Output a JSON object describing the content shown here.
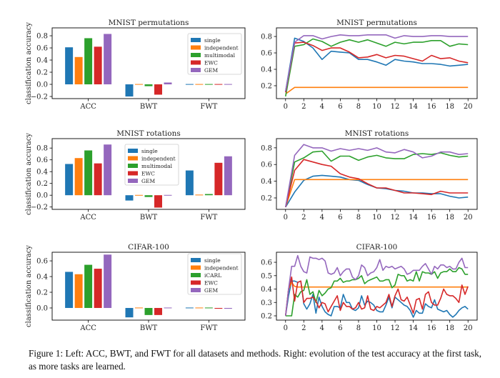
{
  "caption": "Figure 1: Left: ACC, BWT, and FWT for all datasets and methods. Right: evolution of the test accuracy at the first task, as more tasks are learned.",
  "colors": [
    "#1f77b4",
    "#ff7f0e",
    "#2ca02c",
    "#d62728",
    "#9467bd"
  ],
  "chart_data": [
    {
      "type": "bar",
      "title": "MNIST permutations",
      "ylabel": "classification accuracy",
      "categories": [
        "ACC",
        "BWT",
        "FWT"
      ],
      "ylim": [
        -0.235,
        0.93
      ],
      "yticks": [
        -0.2,
        0.0,
        0.2,
        0.4,
        0.6,
        0.8
      ],
      "legend": "top-right",
      "series": [
        {
          "name": "single",
          "values": [
            0.61,
            -0.2,
            0.005
          ]
        },
        {
          "name": "independent",
          "values": [
            0.45,
            0.005,
            0.005
          ]
        },
        {
          "name": "multimodal",
          "values": [
            0.76,
            -0.03,
            0.005
          ]
        },
        {
          "name": "EWC",
          "values": [
            0.62,
            -0.17,
            0.005
          ]
        },
        {
          "name": "GEM",
          "values": [
            0.83,
            0.03,
            0.005
          ]
        }
      ]
    },
    {
      "type": "line",
      "title": "MNIST permutations",
      "ylim": [
        0.043,
        0.905
      ],
      "xlim": [
        -1,
        21
      ],
      "yticks": [
        0.2,
        0.4,
        0.6,
        0.8
      ],
      "xticks": [
        0,
        2,
        4,
        6,
        8,
        10,
        12,
        14,
        16,
        18,
        20
      ],
      "x": [
        0,
        1,
        2,
        3,
        4,
        5,
        6,
        7,
        8,
        9,
        10,
        11,
        12,
        13,
        14,
        15,
        16,
        17,
        18,
        19,
        20
      ],
      "series": [
        {
          "values": [
            0.13,
            0.78,
            0.74,
            0.66,
            0.52,
            0.62,
            0.61,
            0.6,
            0.52,
            0.52,
            0.49,
            0.45,
            0.52,
            0.5,
            0.49,
            0.47,
            0.47,
            0.46,
            0.44,
            0.45,
            0.46
          ]
        },
        {
          "values": [
            0.1,
            0.18,
            0.18,
            0.18,
            0.18,
            0.18,
            0.18,
            0.18,
            0.18,
            0.18,
            0.18,
            0.18,
            0.18,
            0.18,
            0.18,
            0.18,
            0.18,
            0.18,
            0.18,
            0.18,
            0.18
          ]
        },
        {
          "values": [
            0.07,
            0.68,
            0.7,
            0.77,
            0.74,
            0.68,
            0.73,
            0.76,
            0.73,
            0.76,
            0.72,
            0.68,
            0.73,
            0.71,
            0.73,
            0.73,
            0.75,
            0.75,
            0.68,
            0.71,
            0.7
          ]
        },
        {
          "values": [
            0.12,
            0.72,
            0.73,
            0.69,
            0.63,
            0.66,
            0.66,
            0.61,
            0.54,
            0.55,
            0.58,
            0.54,
            0.57,
            0.56,
            0.53,
            0.5,
            0.57,
            0.53,
            0.54,
            0.5,
            0.48
          ]
        },
        {
          "values": [
            0.13,
            0.73,
            0.81,
            0.81,
            0.77,
            0.8,
            0.82,
            0.81,
            0.81,
            0.82,
            0.82,
            0.82,
            0.78,
            0.81,
            0.8,
            0.8,
            0.81,
            0.81,
            0.8,
            0.8,
            0.8
          ]
        }
      ]
    },
    {
      "type": "bar",
      "title": "MNIST rotations",
      "ylabel": "classification accuracy",
      "categories": [
        "ACC",
        "BWT",
        "FWT"
      ],
      "ylim": [
        -0.24,
        0.96
      ],
      "yticks": [
        -0.2,
        0.0,
        0.2,
        0.4,
        0.6,
        0.8
      ],
      "legend": "top-center",
      "series": [
        {
          "name": "single",
          "values": [
            0.53,
            -0.09,
            0.42
          ]
        },
        {
          "name": "independent",
          "values": [
            0.63,
            0.005,
            0.01
          ]
        },
        {
          "name": "multimodal",
          "values": [
            0.76,
            -0.03,
            0.02
          ]
        },
        {
          "name": "EWC",
          "values": [
            0.54,
            -0.21,
            0.55
          ]
        },
        {
          "name": "GEM",
          "values": [
            0.86,
            0.005,
            0.66
          ]
        }
      ]
    },
    {
      "type": "line",
      "title": "MNIST rotations",
      "ylim": [
        0.063,
        0.91
      ],
      "xlim": [
        -1,
        21
      ],
      "yticks": [
        0.2,
        0.4,
        0.6,
        0.8
      ],
      "xticks": [
        0,
        2,
        4,
        6,
        8,
        10,
        12,
        14,
        16,
        18,
        20
      ],
      "x": [
        0,
        1,
        2,
        3,
        4,
        5,
        6,
        7,
        8,
        9,
        10,
        11,
        12,
        13,
        14,
        15,
        16,
        17,
        18,
        19,
        20
      ],
      "series": [
        {
          "values": [
            0.09,
            0.27,
            0.41,
            0.46,
            0.47,
            0.46,
            0.45,
            0.42,
            0.41,
            0.36,
            0.32,
            0.31,
            0.29,
            0.28,
            0.26,
            0.26,
            0.25,
            0.25,
            0.22,
            0.2,
            0.21
          ]
        },
        {
          "values": [
            0.09,
            0.42,
            0.42,
            0.42,
            0.42,
            0.42,
            0.42,
            0.42,
            0.42,
            0.42,
            0.42,
            0.42,
            0.42,
            0.42,
            0.42,
            0.42,
            0.42,
            0.42,
            0.42,
            0.42,
            0.42
          ]
        },
        {
          "values": [
            0.09,
            0.63,
            0.68,
            0.75,
            0.76,
            0.64,
            0.7,
            0.7,
            0.65,
            0.69,
            0.71,
            0.68,
            0.67,
            0.67,
            0.72,
            0.73,
            0.72,
            0.74,
            0.71,
            0.69,
            0.7
          ]
        },
        {
          "values": [
            0.09,
            0.53,
            0.66,
            0.63,
            0.6,
            0.58,
            0.49,
            0.45,
            0.43,
            0.37,
            0.32,
            0.32,
            0.29,
            0.26,
            0.26,
            0.25,
            0.24,
            0.28,
            0.26,
            0.26,
            0.26
          ]
        },
        {
          "values": [
            0.09,
            0.71,
            0.84,
            0.8,
            0.8,
            0.76,
            0.79,
            0.77,
            0.79,
            0.77,
            0.8,
            0.75,
            0.74,
            0.78,
            0.75,
            0.68,
            0.7,
            0.75,
            0.75,
            0.72,
            0.73
          ]
        }
      ]
    },
    {
      "type": "bar",
      "title": "CIFAR-100",
      "ylabel": "classification accuracy",
      "categories": [
        "ACC",
        "BWT",
        "FWT"
      ],
      "ylim": [
        -0.155,
        0.71
      ],
      "yticks": [
        0.0,
        0.2,
        0.4,
        0.6
      ],
      "legend": "top-right",
      "series": [
        {
          "name": "single",
          "values": [
            0.46,
            -0.12,
            0.005
          ]
        },
        {
          "name": "independent",
          "values": [
            0.43,
            0.005,
            0.005
          ]
        },
        {
          "name": "iCARL",
          "values": [
            0.55,
            -0.09,
            0.005
          ]
        },
        {
          "name": "EWC",
          "values": [
            0.5,
            -0.09,
            -0.01
          ]
        },
        {
          "name": "GEM",
          "values": [
            0.68,
            0.005,
            -0.01
          ]
        }
      ]
    },
    {
      "type": "line",
      "title": "CIFAR-100",
      "ylim": [
        0.168,
        0.675
      ],
      "xlim": [
        -1,
        21
      ],
      "yticks": [
        0.2,
        0.3,
        0.4,
        0.5,
        0.6
      ],
      "xticks": [
        0,
        2,
        4,
        6,
        8,
        10,
        12,
        14,
        16,
        18,
        20
      ],
      "x": [
        0,
        0.33,
        0.67,
        1,
        1.33,
        1.67,
        2,
        2.33,
        2.67,
        3,
        3.33,
        3.67,
        4,
        4.33,
        4.67,
        5,
        5.33,
        5.67,
        6,
        6.33,
        6.67,
        7,
        7.33,
        7.67,
        8,
        8.33,
        8.67,
        9,
        9.33,
        9.67,
        10,
        10.33,
        10.67,
        11,
        11.33,
        11.67,
        12,
        12.33,
        12.67,
        13,
        13.33,
        13.67,
        14,
        14.33,
        14.67,
        15,
        15.33,
        15.67,
        16,
        16.33,
        16.67,
        17,
        17.33,
        17.67,
        18,
        18.33,
        18.67,
        19,
        19.33,
        19.67,
        20
      ],
      "series": [
        {
          "values": [
            0.2,
            0.35,
            0.46,
            0.46,
            0.45,
            0.46,
            0.29,
            0.25,
            0.29,
            0.36,
            0.22,
            0.34,
            0.27,
            0.23,
            0.21,
            0.2,
            0.27,
            0.27,
            0.26,
            0.36,
            0.3,
            0.3,
            0.25,
            0.24,
            0.26,
            0.35,
            0.28,
            0.31,
            0.3,
            0.28,
            0.24,
            0.23,
            0.23,
            0.28,
            0.34,
            0.26,
            0.34,
            0.32,
            0.3,
            0.28,
            0.27,
            0.24,
            0.19,
            0.24,
            0.22,
            0.22,
            0.29,
            0.27,
            0.26,
            0.32,
            0.25,
            0.24,
            0.23,
            0.24,
            0.21,
            0.19,
            0.21,
            0.24,
            0.26,
            0.27,
            0.25
          ]
        },
        {
          "values": [
            0.2,
            0.4,
            0.45,
            0.42,
            0.415,
            0.415,
            0.415,
            0.415,
            0.415,
            0.415,
            0.415,
            0.415,
            0.415,
            0.415,
            0.415,
            0.415,
            0.415,
            0.415,
            0.415,
            0.415,
            0.415,
            0.415,
            0.415,
            0.415,
            0.415,
            0.415,
            0.415,
            0.415,
            0.415,
            0.415,
            0.415,
            0.415,
            0.415,
            0.415,
            0.415,
            0.415,
            0.415,
            0.415,
            0.415,
            0.415,
            0.415,
            0.415,
            0.415,
            0.415,
            0.415,
            0.415,
            0.415,
            0.415,
            0.415,
            0.415,
            0.415,
            0.415,
            0.415,
            0.415,
            0.415,
            0.415,
            0.415,
            0.415,
            0.415,
            0.415,
            0.415
          ]
        },
        {
          "values": [
            0.2,
            0.2,
            0.2,
            0.36,
            0.34,
            0.38,
            0.39,
            0.47,
            0.36,
            0.38,
            0.3,
            0.39,
            0.35,
            0.37,
            0.4,
            0.41,
            0.46,
            0.46,
            0.48,
            0.45,
            0.46,
            0.46,
            0.47,
            0.47,
            0.48,
            0.5,
            0.44,
            0.46,
            0.47,
            0.48,
            0.49,
            0.46,
            0.46,
            0.47,
            0.47,
            0.41,
            0.43,
            0.51,
            0.5,
            0.5,
            0.46,
            0.47,
            0.46,
            0.53,
            0.46,
            0.53,
            0.52,
            0.52,
            0.51,
            0.53,
            0.48,
            0.52,
            0.53,
            0.53,
            0.55,
            0.53,
            0.53,
            0.56,
            0.55,
            0.51,
            0.51
          ]
        },
        {
          "values": [
            0.2,
            0.4,
            0.49,
            0.31,
            0.45,
            0.46,
            0.3,
            0.33,
            0.33,
            0.34,
            0.31,
            0.26,
            0.3,
            0.29,
            0.23,
            0.27,
            0.31,
            0.35,
            0.24,
            0.3,
            0.27,
            0.27,
            0.25,
            0.26,
            0.3,
            0.25,
            0.26,
            0.35,
            0.25,
            0.24,
            0.27,
            0.26,
            0.28,
            0.3,
            0.36,
            0.27,
            0.35,
            0.4,
            0.32,
            0.31,
            0.34,
            0.28,
            0.22,
            0.32,
            0.33,
            0.25,
            0.36,
            0.38,
            0.3,
            0.28,
            0.28,
            0.33,
            0.4,
            0.36,
            0.35,
            0.35,
            0.33,
            0.3,
            0.43,
            0.36,
            0.42
          ]
        },
        {
          "values": [
            0.2,
            0.4,
            0.57,
            0.57,
            0.65,
            0.57,
            0.53,
            0.52,
            0.64,
            0.63,
            0.63,
            0.62,
            0.63,
            0.61,
            0.52,
            0.51,
            0.52,
            0.56,
            0.5,
            0.53,
            0.55,
            0.55,
            0.49,
            0.47,
            0.5,
            0.58,
            0.56,
            0.5,
            0.52,
            0.53,
            0.56,
            0.62,
            0.54,
            0.57,
            0.56,
            0.57,
            0.55,
            0.56,
            0.57,
            0.55,
            0.51,
            0.52,
            0.54,
            0.54,
            0.54,
            0.57,
            0.59,
            0.55,
            0.51,
            0.57,
            0.55,
            0.58,
            0.58,
            0.56,
            0.57,
            0.55,
            0.55,
            0.6,
            0.63,
            0.56,
            0.56
          ]
        }
      ]
    }
  ]
}
